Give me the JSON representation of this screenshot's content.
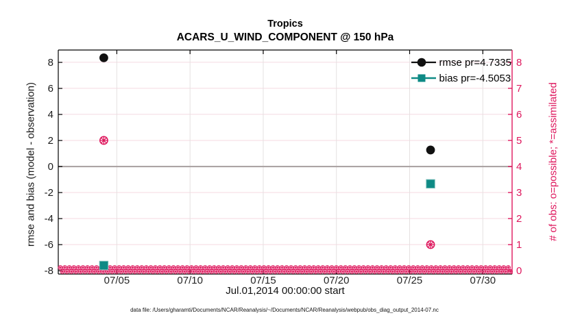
{
  "title": {
    "line1": "Tropics",
    "line2": "ACARS_U_WIND_COMPONENT @ 150 hPa"
  },
  "legend": {
    "items": [
      {
        "label": "rmse pr=4.7335",
        "marker": "filled-circle",
        "color": "#111111"
      },
      {
        "label": "bias pr=-4.5053",
        "marker": "filled-square",
        "color": "#0E8A85"
      }
    ]
  },
  "axes": {
    "left": {
      "label": "rmse and bias (model - observation)",
      "ticks": [
        "8",
        "6",
        "4",
        "2",
        "0",
        "-2",
        "-4",
        "-6",
        "-8"
      ],
      "color": "#1a1a1a"
    },
    "right": {
      "label": "# of obs: o=possible; *=assimilated",
      "ticks": [
        "8",
        "7",
        "6",
        "5",
        "4",
        "3",
        "2",
        "1",
        "0"
      ],
      "color": "#DE175D"
    },
    "x": {
      "label": "Jul.01,2014 00:00:00 start",
      "ticks": [
        "07/05",
        "07/10",
        "07/15",
        "07/20",
        "07/25",
        "07/30"
      ]
    }
  },
  "footer": {
    "caption": "data file: /Users/gharamti/Documents/NCAR/Reanalysis/~/Documents/NCAR/Reanalysis/webpub/obs_diag_output_2014-07.nc"
  },
  "chart_data": {
    "type": "scatter",
    "title": "Tropics / ACARS_U_WIND_COMPONENT @ 150 hPa",
    "x_axis": {
      "label": "Jul.01,2014 00:00:00 start",
      "start_date": "Jul.01,2014 00:00:00",
      "range_days": [
        0,
        31
      ],
      "tick_days": [
        4,
        9,
        14,
        19,
        24,
        29
      ],
      "tick_labels": [
        "07/05",
        "07/10",
        "07/15",
        "07/20",
        "07/25",
        "07/30"
      ]
    },
    "left_axis": {
      "label": "rmse and bias (model - observation)",
      "lim": [
        -8.26,
        8.95
      ],
      "tick_values": [
        8,
        6,
        4,
        2,
        0,
        -2,
        -4,
        -6,
        -8
      ]
    },
    "right_axis": {
      "label": "# of obs: o=possible; *=assimilated",
      "lim": [
        -0.13,
        8.47
      ],
      "tick_values": [
        8,
        7,
        6,
        5,
        4,
        3,
        2,
        1,
        0
      ],
      "color": "#DE175D"
    },
    "series": [
      {
        "name": "rmse pr=4.7335",
        "axis": "left",
        "marker": "filled-circle",
        "color": "#111111",
        "points": [
          {
            "day": 3.11,
            "value": 8.35
          },
          {
            "day": 25.43,
            "value": 1.27
          }
        ]
      },
      {
        "name": "bias pr=-4.5053",
        "axis": "left",
        "marker": "filled-square",
        "color": "#0E8A85",
        "points": [
          {
            "day": 3.11,
            "value": -7.6
          },
          {
            "day": 25.43,
            "value": -1.33
          }
        ]
      },
      {
        "name": "# of obs (o=possible, *=assimilated)",
        "axis": "right",
        "marker": "circle-asterisk",
        "color": "#DE175D",
        "points": [
          {
            "day": 3.11,
            "value": 5
          },
          {
            "day": 25.43,
            "value": 1
          }
        ]
      }
    ],
    "zero_line": {
      "axis": "left",
      "value": 0,
      "color": "#ACA4A4"
    },
    "obs_zero_band": {
      "axis": "right",
      "value": 0,
      "color": "#DE175D",
      "note": "dense overlapping o/* markers across the entire month where observation count = 0"
    },
    "grid": {
      "horizontal_color": "#F4D9E1",
      "vertical_color": "#E5E1E1",
      "on": true
    },
    "legend_position": "top-right-inside"
  }
}
